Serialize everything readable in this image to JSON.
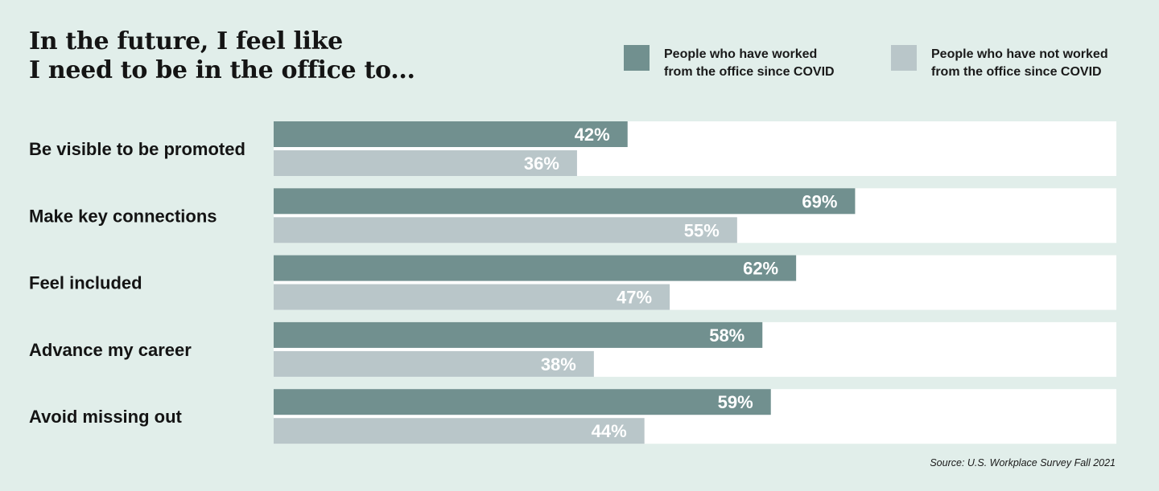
{
  "title_lines": [
    "In the future, I feel like",
    "I need to be in the office to..."
  ],
  "legend": [
    {
      "lines": [
        "People who have worked",
        "from the office since COVID"
      ],
      "color": "#71908f"
    },
    {
      "lines": [
        "People who have not worked",
        "from the office since COVID"
      ],
      "color": "#b9c6c9"
    }
  ],
  "source": "Source: U.S. Workplace Survey Fall 2021",
  "colors": {
    "background": "#e1eeea",
    "panel": "#ffffff",
    "label_text": "#141414",
    "value_text": "#ffffff"
  },
  "chart_data": {
    "type": "bar",
    "orientation": "horizontal",
    "categories": [
      "Be visible to be promoted",
      "Make key connections",
      "Feel included",
      "Advance my career",
      "Avoid missing out"
    ],
    "series": [
      {
        "name": "People who have worked from the office since COVID",
        "values": [
          42,
          69,
          62,
          58,
          59
        ],
        "color": "#71908f"
      },
      {
        "name": "People who have not worked from the office since COVID",
        "values": [
          36,
          55,
          47,
          38,
          44
        ],
        "color": "#b9c6c9"
      }
    ],
    "value_suffix": "%",
    "xlim": [
      0,
      100
    ],
    "grid": false,
    "legend_position": "top-right"
  }
}
